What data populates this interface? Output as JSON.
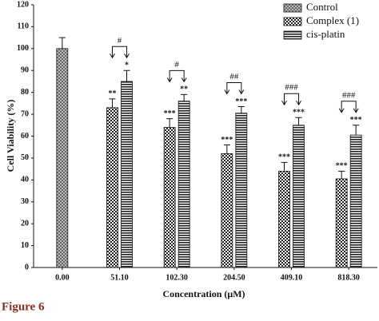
{
  "chart_data": {
    "type": "bar",
    "ylabel": "Cell Viability (%)",
    "xlabel": "Concentration (μM)",
    "categories": [
      "0.00",
      "51.10",
      "102.30",
      "204.50",
      "409.10",
      "818.30"
    ],
    "series": [
      {
        "name": "Control",
        "color": "#888888",
        "values": [
          100,
          null,
          null,
          null,
          null,
          null
        ],
        "errors": [
          5,
          null,
          null,
          null,
          null,
          null
        ],
        "significance": [
          null,
          null,
          null,
          null,
          null,
          null
        ]
      },
      {
        "name": "Complex (1)",
        "color": "#444444",
        "values": [
          null,
          73,
          64,
          52,
          44,
          40.5
        ],
        "errors": [
          null,
          4,
          4,
          4,
          4,
          3.5
        ],
        "significance": [
          null,
          "**",
          "***",
          "***",
          "***",
          "***"
        ]
      },
      {
        "name": "cis-platin",
        "color": "#222222",
        "values": [
          null,
          85,
          76,
          70.5,
          65,
          60.5
        ],
        "errors": [
          null,
          5,
          3,
          3,
          3.5,
          4.5
        ],
        "significance": [
          null,
          "*",
          "**",
          "***",
          "***",
          "***"
        ]
      }
    ],
    "comparisons": [
      null,
      "#",
      "#",
      "##",
      "###",
      "###"
    ],
    "ylim": [
      0,
      120
    ],
    "yticks": [
      0,
      10,
      20,
      30,
      40,
      50,
      60,
      70,
      80,
      90,
      100,
      110,
      120
    ],
    "legend": "top-right",
    "caption": "Figure 6"
  }
}
